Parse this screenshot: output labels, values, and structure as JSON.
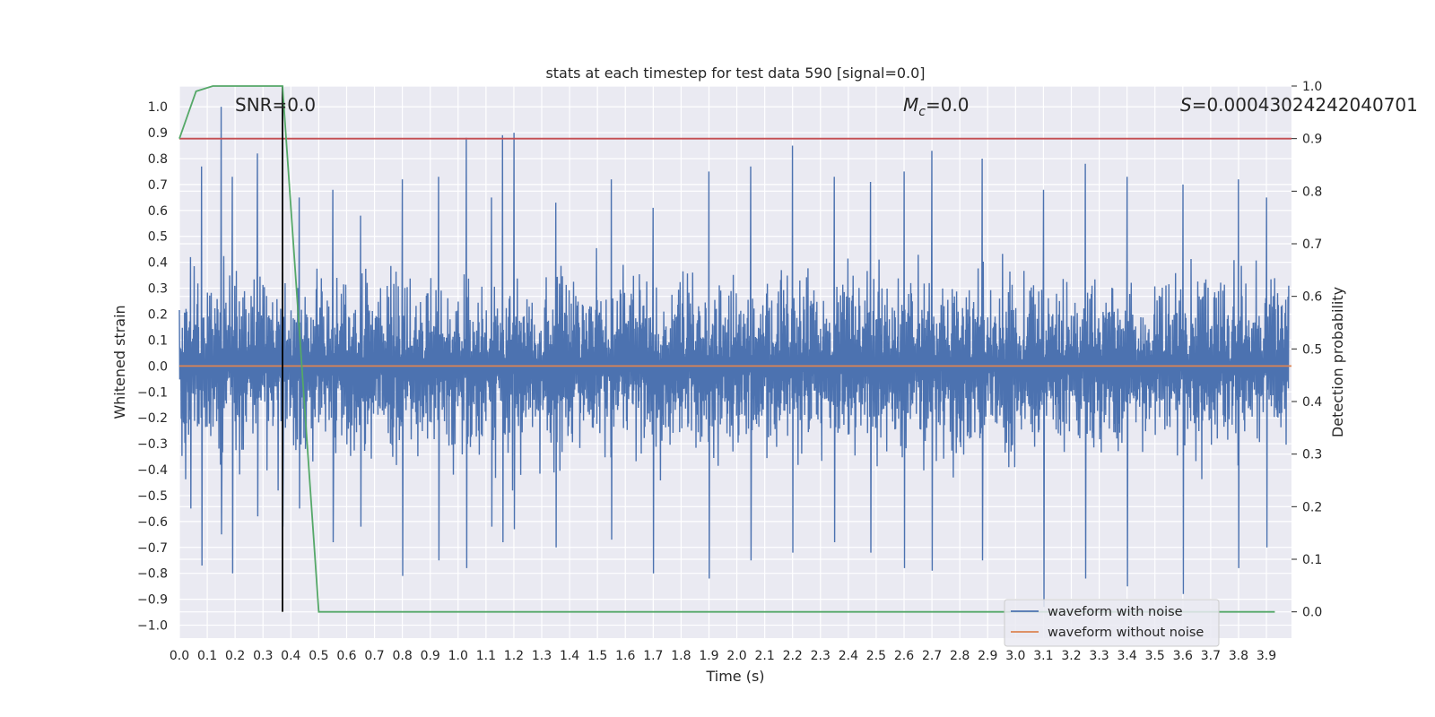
{
  "chart_data": {
    "type": "line",
    "title": "stats at each timestep for test data 590 [signal=0.0]",
    "xlabel": "Time (s)",
    "ylabel": "Whitened strain",
    "y2label": "Detection probability",
    "xlim": [
      0.0,
      3.99
    ],
    "ylim": [
      -1.05,
      1.08
    ],
    "y2lim": [
      -0.05,
      1.0
    ],
    "x_ticks": [
      "0.0",
      "0.1",
      "0.2",
      "0.3",
      "0.4",
      "0.5",
      "0.6",
      "0.7",
      "0.8",
      "0.9",
      "1.0",
      "1.1",
      "1.2",
      "1.3",
      "1.4",
      "1.5",
      "1.6",
      "1.7",
      "1.8",
      "1.9",
      "2.0",
      "2.1",
      "2.2",
      "2.3",
      "2.4",
      "2.5",
      "2.6",
      "2.7",
      "2.8",
      "2.9",
      "3.0",
      "3.1",
      "3.2",
      "3.3",
      "3.4",
      "3.5",
      "3.6",
      "3.7",
      "3.8",
      "3.9"
    ],
    "y_ticks": [
      "1.0",
      "0.9",
      "0.8",
      "0.7",
      "0.6",
      "0.5",
      "0.4",
      "0.3",
      "0.2",
      "0.1",
      "0.0",
      "−0.1",
      "−0.2",
      "−0.3",
      "−0.4",
      "−0.5",
      "−0.6",
      "−0.7",
      "−0.8",
      "−0.9",
      "−1.0"
    ],
    "y2_ticks": [
      "1.0",
      "0.9",
      "0.8",
      "0.7",
      "0.6",
      "0.5",
      "0.4",
      "0.3",
      "0.2",
      "0.1",
      "0.0"
    ],
    "grid": true,
    "legend_position": "bottom-right",
    "annotations": [
      {
        "text": "SNR=0.0",
        "x": 0.2
      },
      {
        "text": "M_c=0.0",
        "x": 2.6
      },
      {
        "text": "S=0.00043024242040701",
        "x": 3.6
      }
    ],
    "series": [
      {
        "name": "waveform with noise",
        "color": "#4c72b0",
        "axis": "left",
        "peaks": {
          "x": [
            0.04,
            0.08,
            0.15,
            0.19,
            0.28,
            0.37,
            0.43,
            0.55,
            0.65,
            0.8,
            0.93,
            1.03,
            1.12,
            1.16,
            1.2,
            1.35,
            1.55,
            1.7,
            1.9,
            2.05,
            2.2,
            2.35,
            2.48,
            2.6,
            2.7,
            2.88,
            3.1,
            3.25,
            3.4,
            3.6,
            3.8,
            3.9
          ],
          "max": [
            0.42,
            0.77,
            1.0,
            0.73,
            0.82,
            0.36,
            0.65,
            0.68,
            0.58,
            0.72,
            0.73,
            0.88,
            0.65,
            0.89,
            0.9,
            0.63,
            0.72,
            0.61,
            0.75,
            0.77,
            0.85,
            0.73,
            0.71,
            0.75,
            0.83,
            0.8,
            0.68,
            0.78,
            0.73,
            0.7,
            0.72,
            0.65
          ],
          "min": [
            -0.55,
            -0.77,
            -0.65,
            -0.8,
            -0.58,
            -0.62,
            -0.55,
            -0.68,
            -0.62,
            -0.81,
            -0.75,
            -0.78,
            -0.62,
            -0.68,
            -0.63,
            -0.7,
            -0.67,
            -0.8,
            -0.82,
            -0.75,
            -0.72,
            -0.68,
            -0.72,
            -0.78,
            -0.79,
            -0.75,
            -0.93,
            -0.82,
            -0.85,
            -0.88,
            -0.78,
            -0.7
          ]
        }
      },
      {
        "name": "waveform without noise",
        "color": "#dd8452",
        "axis": "left",
        "x": [
          0.0,
          3.99
        ],
        "y": [
          0.0,
          0.0
        ]
      },
      {
        "name": "detection probability",
        "color": "#55a868",
        "axis": "right",
        "x": [
          0.0,
          0.06,
          0.12,
          0.37,
          0.5,
          3.93
        ],
        "y": [
          0.9,
          0.99,
          1.0,
          1.0,
          0.0,
          0.0
        ]
      }
    ],
    "threshold": {
      "value": 0.9,
      "axis": "right",
      "color": "#c44e52"
    },
    "vline": {
      "x": 0.37,
      "color": "#000000"
    }
  }
}
